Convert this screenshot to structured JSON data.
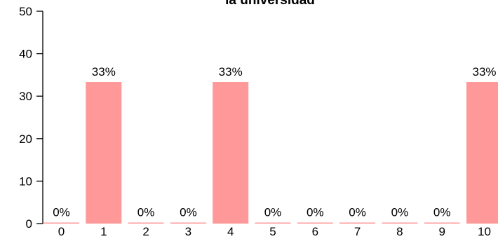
{
  "chart_data": {
    "type": "bar",
    "title": "la universidad",
    "categories": [
      "0",
      "1",
      "2",
      "3",
      "4",
      "5",
      "6",
      "7",
      "8",
      "9",
      "10"
    ],
    "values": [
      0,
      33.33,
      0,
      0,
      33.33,
      0,
      0,
      0,
      0,
      0,
      33.33
    ],
    "data_labels": [
      "0%",
      "33%",
      "0%",
      "0%",
      "33%",
      "0%",
      "0%",
      "0%",
      "0%",
      "0%",
      "33%"
    ],
    "ylim": [
      0,
      50
    ],
    "yticks": [
      0,
      10,
      20,
      30,
      40,
      50
    ],
    "ytick_labels": [
      "0",
      "10",
      "20",
      "30",
      "40",
      "50"
    ],
    "xlabel": "",
    "ylabel": "",
    "grid": false,
    "colors": {
      "bar": "#ff9999",
      "axis": "#000000",
      "text": "#000000"
    }
  }
}
